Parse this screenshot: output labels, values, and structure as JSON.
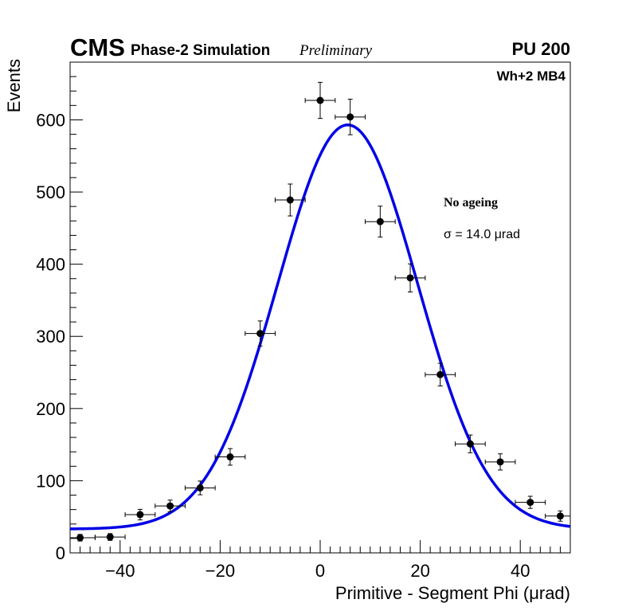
{
  "chart_data": {
    "type": "scatter",
    "header": {
      "experiment": "CMS",
      "subtitle": "Phase-2 Simulation",
      "status": "Preliminary",
      "pileup": "PU 200"
    },
    "region_label": "Wh+2 MB4",
    "annotation_title": "No ageing",
    "annotation_sigma": "σ = 14.0  μrad",
    "xlabel": "Primitive - Segment Phi (μrad)",
    "ylabel": "Events",
    "xlim": [
      -50,
      50
    ],
    "ylim": [
      0,
      680
    ],
    "x_ticks": [
      -40,
      -20,
      0,
      20,
      40
    ],
    "x_tick_labels": [
      "−40",
      "−20",
      "0",
      "20",
      "40"
    ],
    "y_ticks": [
      0,
      100,
      200,
      300,
      400,
      500,
      600
    ],
    "y_tick_labels": [
      "0",
      "100",
      "200",
      "300",
      "400",
      "500",
      "600"
    ],
    "bin_half_width": 3,
    "series": [
      {
        "name": "Simulation",
        "x": [
          -48,
          -42,
          -36,
          -30,
          -24,
          -18,
          -12,
          -6,
          0,
          6,
          12,
          18,
          24,
          30,
          36,
          42,
          48
        ],
        "y": [
          21,
          22,
          53,
          65,
          90,
          133,
          304,
          489,
          627,
          604,
          459,
          381,
          247,
          151,
          126,
          70,
          51
        ],
        "err": [
          4.6,
          4.7,
          7.3,
          8.1,
          9.5,
          11.5,
          17.4,
          22.1,
          25.0,
          24.6,
          21.4,
          19.5,
          15.7,
          12.3,
          11.2,
          8.4,
          7.1
        ],
        "color": "#000000"
      },
      {
        "name": "Gaussian fit",
        "mean": 5.5,
        "sigma": 14.0,
        "amplitude": 560,
        "constant": 33,
        "color": "#0000e6"
      }
    ]
  }
}
